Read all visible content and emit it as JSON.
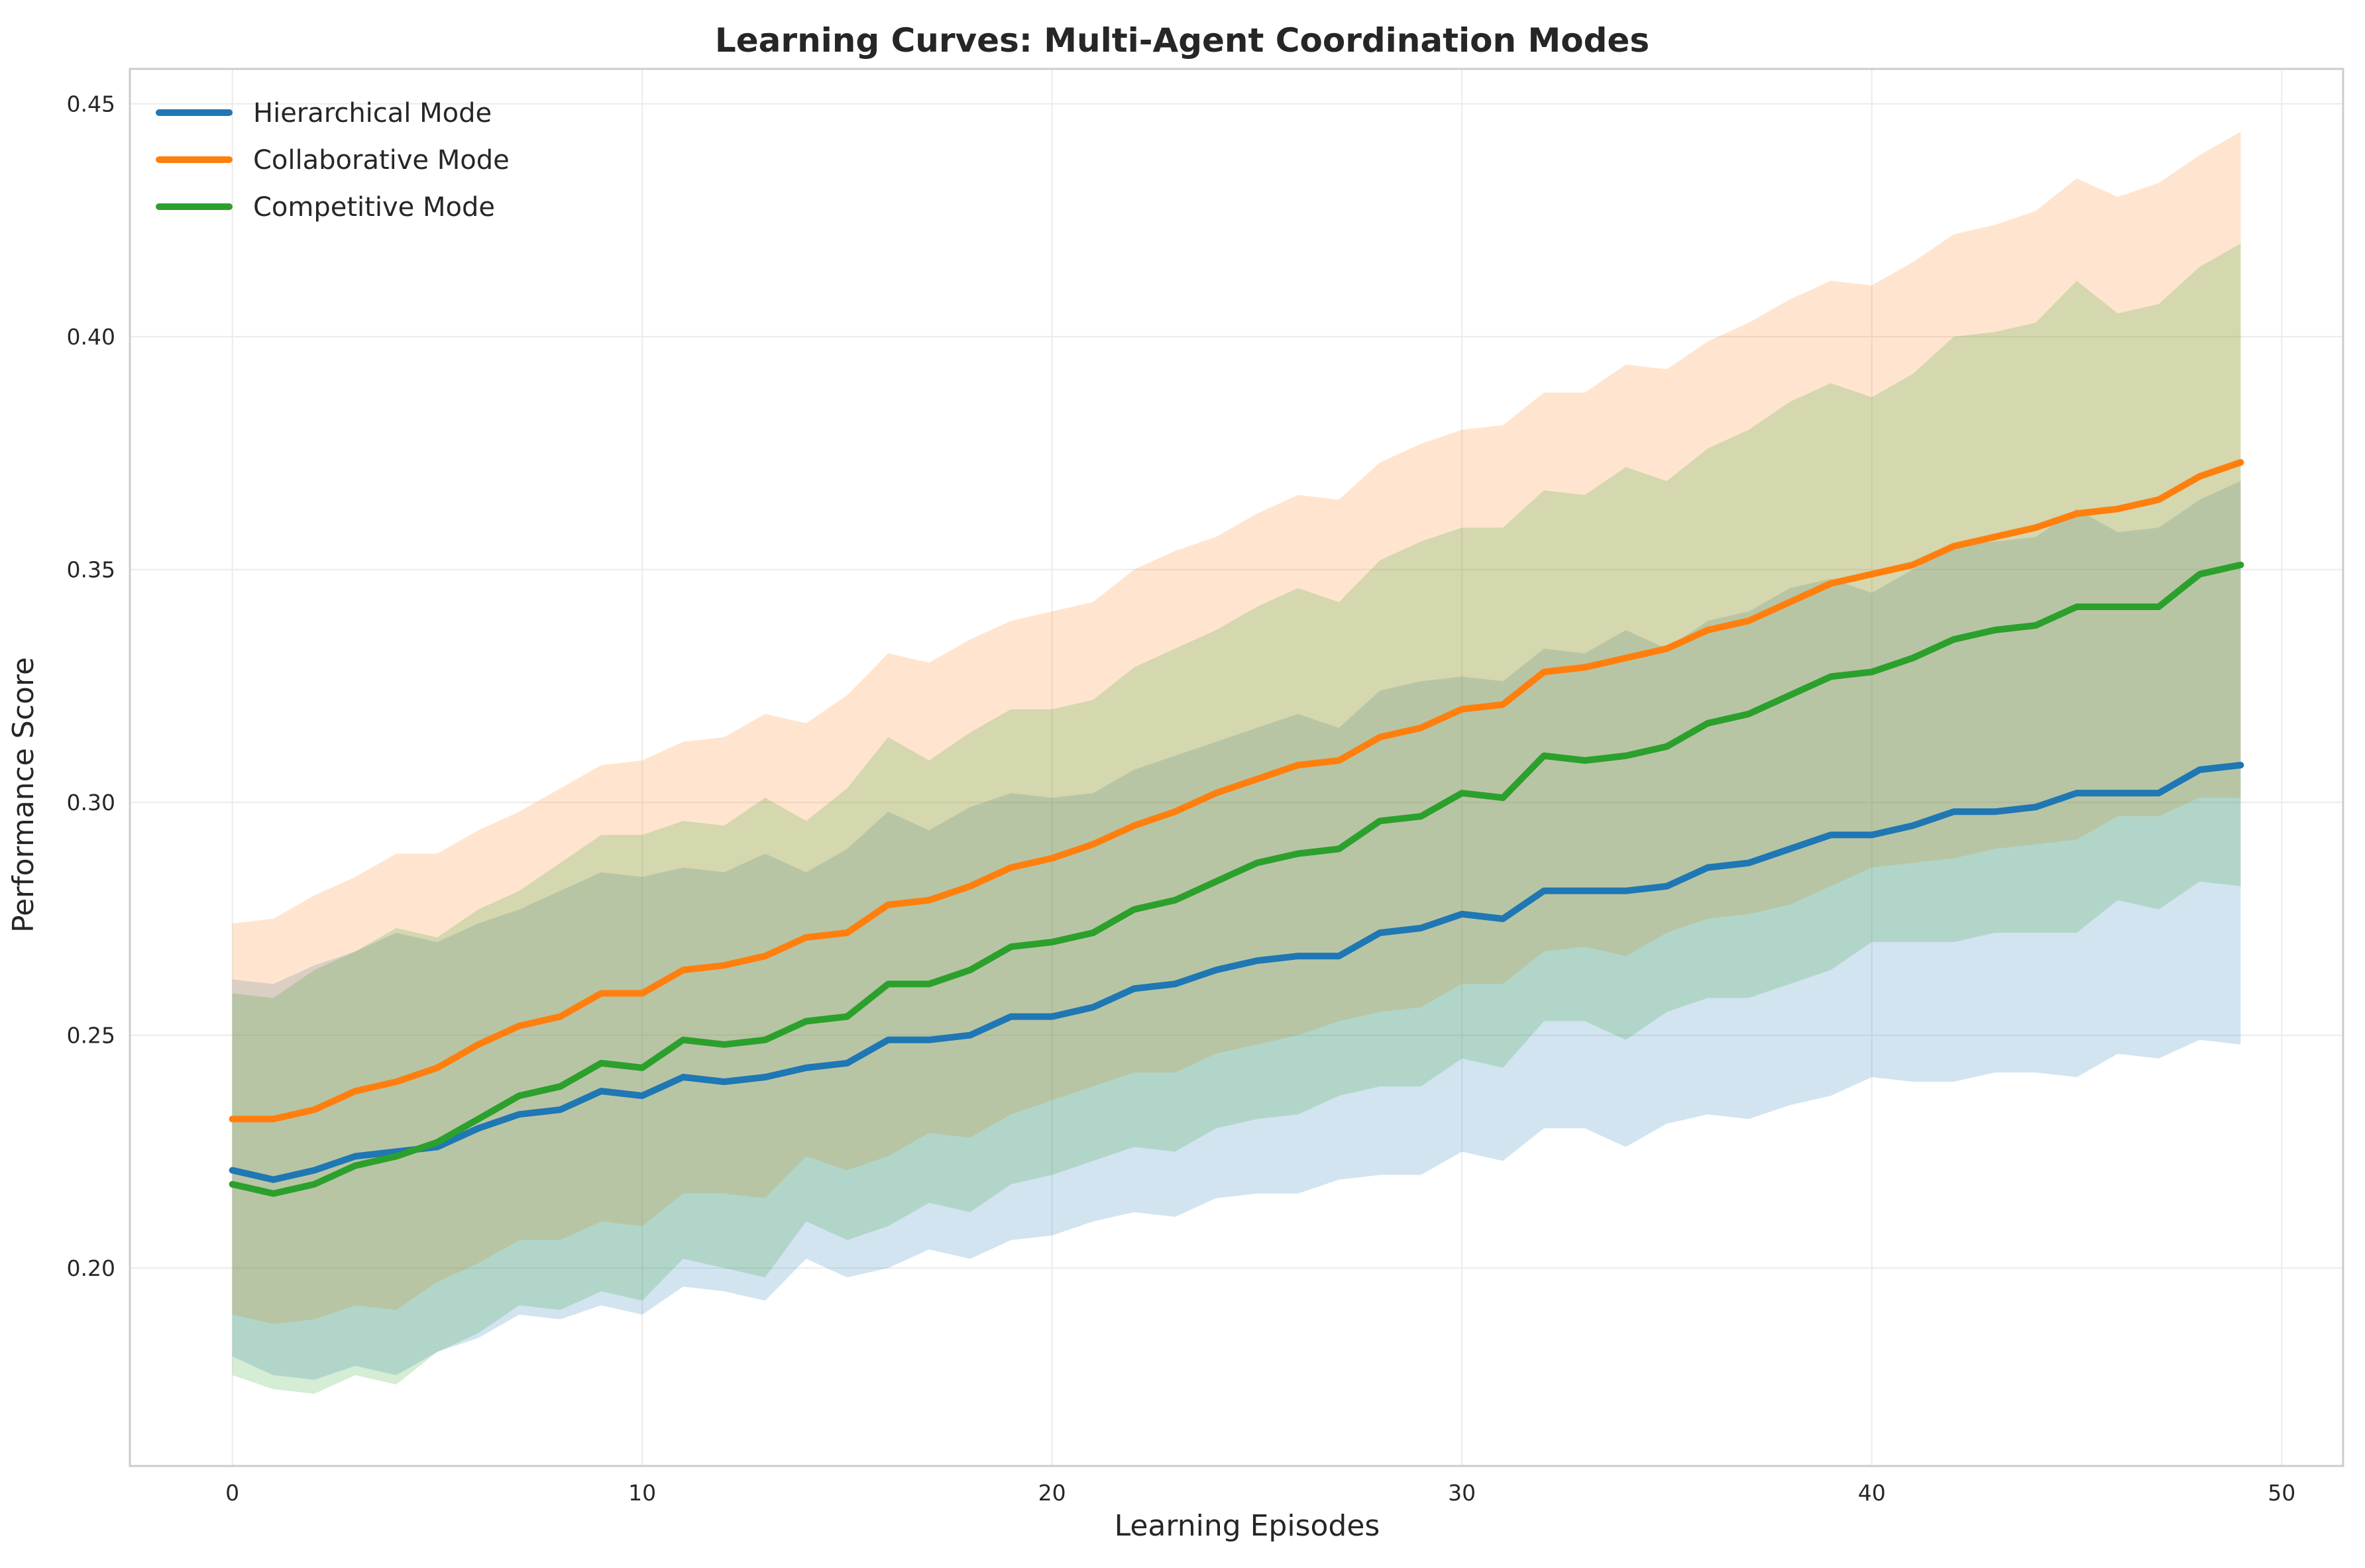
{
  "chart_data": {
    "type": "line",
    "title": "Learning Curves: Multi-Agent Coordination Modes",
    "xlabel": "Learning Episodes",
    "ylabel": "Performance Score",
    "xlim": [
      -2.5,
      51.5
    ],
    "ylim": [
      0.1575,
      0.4575
    ],
    "xticks": [
      0,
      10,
      20,
      30,
      40,
      50
    ],
    "yticks": [
      0.2,
      0.25,
      0.3,
      0.35,
      0.4,
      0.45
    ],
    "xtick_labels": [
      "0",
      "10",
      "20",
      "30",
      "40",
      "50"
    ],
    "ytick_labels": [
      "0.20",
      "0.25",
      "0.30",
      "0.35",
      "0.40",
      "0.45"
    ],
    "grid": true,
    "legend_position": "top-left",
    "x": [
      0,
      1,
      2,
      3,
      4,
      5,
      6,
      7,
      8,
      9,
      10,
      11,
      12,
      13,
      14,
      15,
      16,
      17,
      18,
      19,
      20,
      21,
      22,
      23,
      24,
      25,
      26,
      27,
      28,
      29,
      30,
      31,
      32,
      33,
      34,
      35,
      36,
      37,
      38,
      39,
      40,
      41,
      42,
      43,
      44,
      45,
      46,
      47,
      48,
      49
    ],
    "series": [
      {
        "name": "Hierarchical Mode",
        "color": "#1f77b4",
        "values": [
          0.221,
          0.219,
          0.221,
          0.224,
          0.225,
          0.226,
          0.23,
          0.233,
          0.234,
          0.238,
          0.237,
          0.241,
          0.24,
          0.241,
          0.243,
          0.244,
          0.249,
          0.249,
          0.25,
          0.254,
          0.254,
          0.256,
          0.26,
          0.261,
          0.264,
          0.266,
          0.267,
          0.267,
          0.272,
          0.273,
          0.276,
          0.275,
          0.281,
          0.281,
          0.281,
          0.282,
          0.286,
          0.287,
          0.29,
          0.293,
          0.293,
          0.295,
          0.298,
          0.298,
          0.299,
          0.302,
          0.302,
          0.302,
          0.307,
          0.308
        ],
        "upper": [
          0.262,
          0.261,
          0.265,
          0.268,
          0.272,
          0.27,
          0.274,
          0.277,
          0.281,
          0.285,
          0.284,
          0.286,
          0.285,
          0.289,
          0.285,
          0.29,
          0.298,
          0.294,
          0.299,
          0.302,
          0.301,
          0.302,
          0.307,
          0.31,
          0.313,
          0.316,
          0.319,
          0.316,
          0.324,
          0.326,
          0.327,
          0.326,
          0.333,
          0.332,
          0.337,
          0.333,
          0.339,
          0.341,
          0.346,
          0.348,
          0.345,
          0.35,
          0.355,
          0.356,
          0.357,
          0.363,
          0.358,
          0.359,
          0.365,
          0.369
        ],
        "lower": [
          0.181,
          0.177,
          0.176,
          0.179,
          0.177,
          0.182,
          0.185,
          0.19,
          0.189,
          0.192,
          0.19,
          0.196,
          0.195,
          0.193,
          0.202,
          0.198,
          0.2,
          0.204,
          0.202,
          0.206,
          0.207,
          0.21,
          0.212,
          0.211,
          0.215,
          0.216,
          0.216,
          0.219,
          0.22,
          0.22,
          0.225,
          0.223,
          0.23,
          0.23,
          0.226,
          0.231,
          0.233,
          0.232,
          0.235,
          0.237,
          0.241,
          0.24,
          0.24,
          0.242,
          0.242,
          0.241,
          0.246,
          0.245,
          0.249,
          0.248
        ]
      },
      {
        "name": "Collaborative Mode",
        "color": "#ff7f0e",
        "values": [
          0.232,
          0.232,
          0.234,
          0.238,
          0.24,
          0.243,
          0.248,
          0.252,
          0.254,
          0.259,
          0.259,
          0.264,
          0.265,
          0.267,
          0.271,
          0.272,
          0.278,
          0.279,
          0.282,
          0.286,
          0.288,
          0.291,
          0.295,
          0.298,
          0.302,
          0.305,
          0.308,
          0.309,
          0.314,
          0.316,
          0.32,
          0.321,
          0.328,
          0.329,
          0.331,
          0.333,
          0.337,
          0.339,
          0.343,
          0.347,
          0.349,
          0.351,
          0.355,
          0.357,
          0.359,
          0.362,
          0.363,
          0.365,
          0.37,
          0.373
        ],
        "upper": [
          0.274,
          0.275,
          0.28,
          0.284,
          0.289,
          0.289,
          0.294,
          0.298,
          0.303,
          0.308,
          0.309,
          0.313,
          0.314,
          0.319,
          0.317,
          0.323,
          0.332,
          0.33,
          0.335,
          0.339,
          0.341,
          0.343,
          0.35,
          0.354,
          0.357,
          0.362,
          0.366,
          0.365,
          0.373,
          0.377,
          0.38,
          0.381,
          0.388,
          0.388,
          0.394,
          0.393,
          0.399,
          0.403,
          0.408,
          0.412,
          0.411,
          0.416,
          0.422,
          0.424,
          0.427,
          0.434,
          0.43,
          0.433,
          0.439,
          0.444
        ],
        "lower": [
          0.19,
          0.188,
          0.189,
          0.192,
          0.191,
          0.197,
          0.201,
          0.206,
          0.206,
          0.21,
          0.209,
          0.216,
          0.216,
          0.215,
          0.224,
          0.221,
          0.224,
          0.229,
          0.228,
          0.233,
          0.236,
          0.239,
          0.242,
          0.242,
          0.246,
          0.248,
          0.25,
          0.253,
          0.255,
          0.256,
          0.261,
          0.261,
          0.268,
          0.269,
          0.267,
          0.272,
          0.275,
          0.276,
          0.278,
          0.282,
          0.286,
          0.287,
          0.288,
          0.29,
          0.291,
          0.292,
          0.297,
          0.297,
          0.301,
          0.301
        ]
      },
      {
        "name": "Competitive Mode",
        "color": "#2ca02c",
        "values": [
          0.218,
          0.216,
          0.218,
          0.222,
          0.224,
          0.227,
          0.232,
          0.237,
          0.239,
          0.244,
          0.243,
          0.249,
          0.248,
          0.249,
          0.253,
          0.254,
          0.261,
          0.261,
          0.264,
          0.269,
          0.27,
          0.272,
          0.277,
          0.279,
          0.283,
          0.287,
          0.289,
          0.29,
          0.296,
          0.297,
          0.302,
          0.301,
          0.31,
          0.309,
          0.31,
          0.312,
          0.317,
          0.319,
          0.323,
          0.327,
          0.328,
          0.331,
          0.335,
          0.337,
          0.338,
          0.342,
          0.342,
          0.342,
          0.349,
          0.351
        ],
        "upper": [
          0.259,
          0.258,
          0.264,
          0.268,
          0.273,
          0.271,
          0.277,
          0.281,
          0.287,
          0.293,
          0.293,
          0.296,
          0.295,
          0.301,
          0.296,
          0.303,
          0.314,
          0.309,
          0.315,
          0.32,
          0.32,
          0.322,
          0.329,
          0.333,
          0.337,
          0.342,
          0.346,
          0.343,
          0.352,
          0.356,
          0.359,
          0.359,
          0.367,
          0.366,
          0.372,
          0.369,
          0.376,
          0.38,
          0.386,
          0.39,
          0.387,
          0.392,
          0.4,
          0.401,
          0.403,
          0.412,
          0.405,
          0.407,
          0.415,
          0.42
        ],
        "lower": [
          0.177,
          0.174,
          0.173,
          0.177,
          0.175,
          0.182,
          0.186,
          0.192,
          0.191,
          0.195,
          0.193,
          0.202,
          0.2,
          0.198,
          0.21,
          0.206,
          0.209,
          0.214,
          0.212,
          0.218,
          0.22,
          0.223,
          0.226,
          0.225,
          0.23,
          0.232,
          0.233,
          0.237,
          0.239,
          0.239,
          0.245,
          0.243,
          0.253,
          0.253,
          0.249,
          0.255,
          0.258,
          0.258,
          0.261,
          0.264,
          0.27,
          0.27,
          0.27,
          0.272,
          0.272,
          0.272,
          0.279,
          0.277,
          0.283,
          0.282
        ]
      }
    ]
  }
}
